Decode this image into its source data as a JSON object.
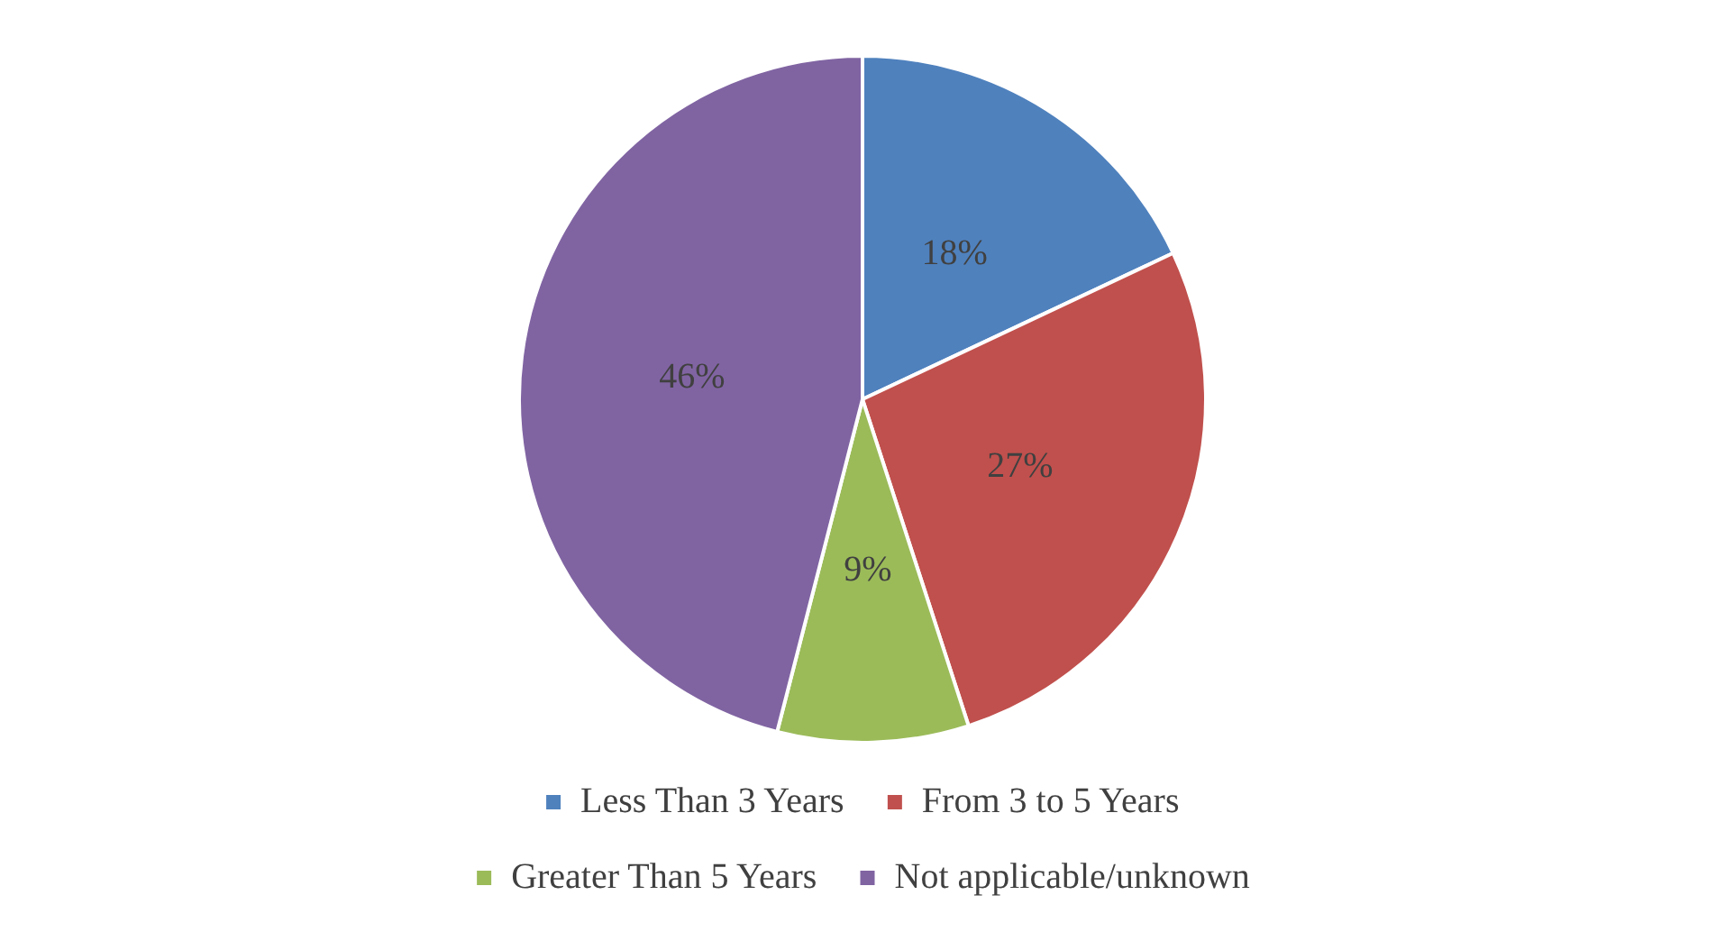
{
  "chart_data": {
    "type": "pie",
    "categories": [
      "Less Than 3 Years",
      "From 3 to 5 Years",
      "Greater Than 5 Years",
      "Not applicable/unknown"
    ],
    "values": [
      18,
      27,
      9,
      46
    ],
    "value_labels": [
      "18%",
      "27%",
      "9%",
      "46%"
    ],
    "colors": [
      "#4f81bd",
      "#c0504d",
      "#9bbb59",
      "#8064a2"
    ],
    "legend": "bottom"
  }
}
